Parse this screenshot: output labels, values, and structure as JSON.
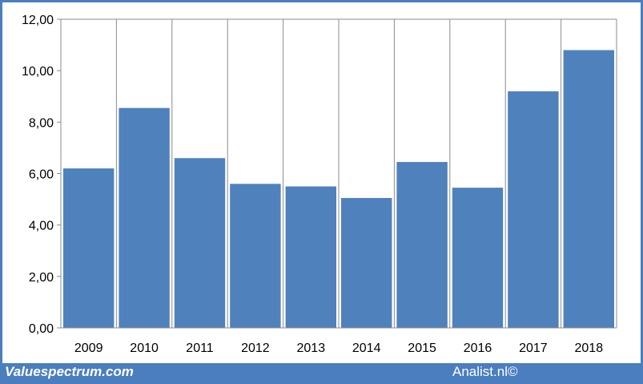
{
  "chart_data": {
    "type": "bar",
    "categories": [
      "2009",
      "2010",
      "2011",
      "2012",
      "2013",
      "2014",
      "2015",
      "2016",
      "2017",
      "2018"
    ],
    "values": [
      6.2,
      8.55,
      6.6,
      5.6,
      5.5,
      5.05,
      6.45,
      5.45,
      9.2,
      10.8
    ],
    "title": "",
    "xlabel": "",
    "ylabel": "",
    "ylim": [
      0,
      12
    ],
    "yticks": [
      "0,00",
      "2,00",
      "4,00",
      "6,00",
      "8,00",
      "10,00",
      "12,00"
    ],
    "grid": "vertical",
    "bar_color": "#4f81bd",
    "background_color": "#4a7ebf"
  },
  "footer": {
    "left_text": "Valuespectrum.com",
    "right_text": "Analist.nl©"
  }
}
